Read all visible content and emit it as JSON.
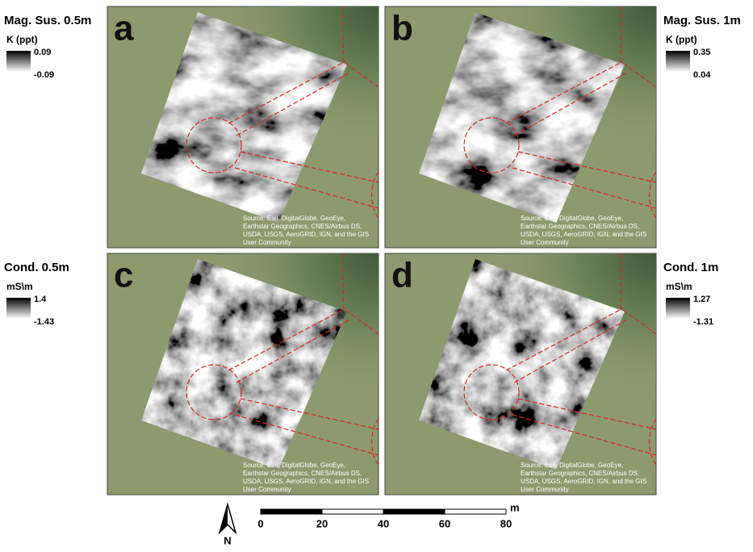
{
  "panels": [
    {
      "letter": "a",
      "title": "Mag. Sus. 0.5m",
      "unit": "K (ppt)",
      "max": 0.09,
      "min": -0.09
    },
    {
      "letter": "b",
      "title": "Mag. Sus. 1m",
      "unit": "K (ppt)",
      "max": 0.35,
      "min": 0.04
    },
    {
      "letter": "c",
      "title": "Cond. 0.5m",
      "unit": "mS\\m",
      "max": 1.4,
      "min": -1.43
    },
    {
      "letter": "d",
      "title": "Cond. 1m",
      "unit": "mS\\m",
      "max": 1.27,
      "min": -1.31
    }
  ],
  "attribution": [
    "Source: Esri, DigitalGlobe, GeoEye,",
    "Earthstar Geographics, CNES/Airbus DS,",
    "USDA, USGS, AeroGRID, IGN, and the GIS",
    "User Community"
  ],
  "scale_bar": {
    "unit": "m",
    "ticks": [
      0,
      20,
      40,
      60,
      80
    ]
  },
  "north": "N"
}
